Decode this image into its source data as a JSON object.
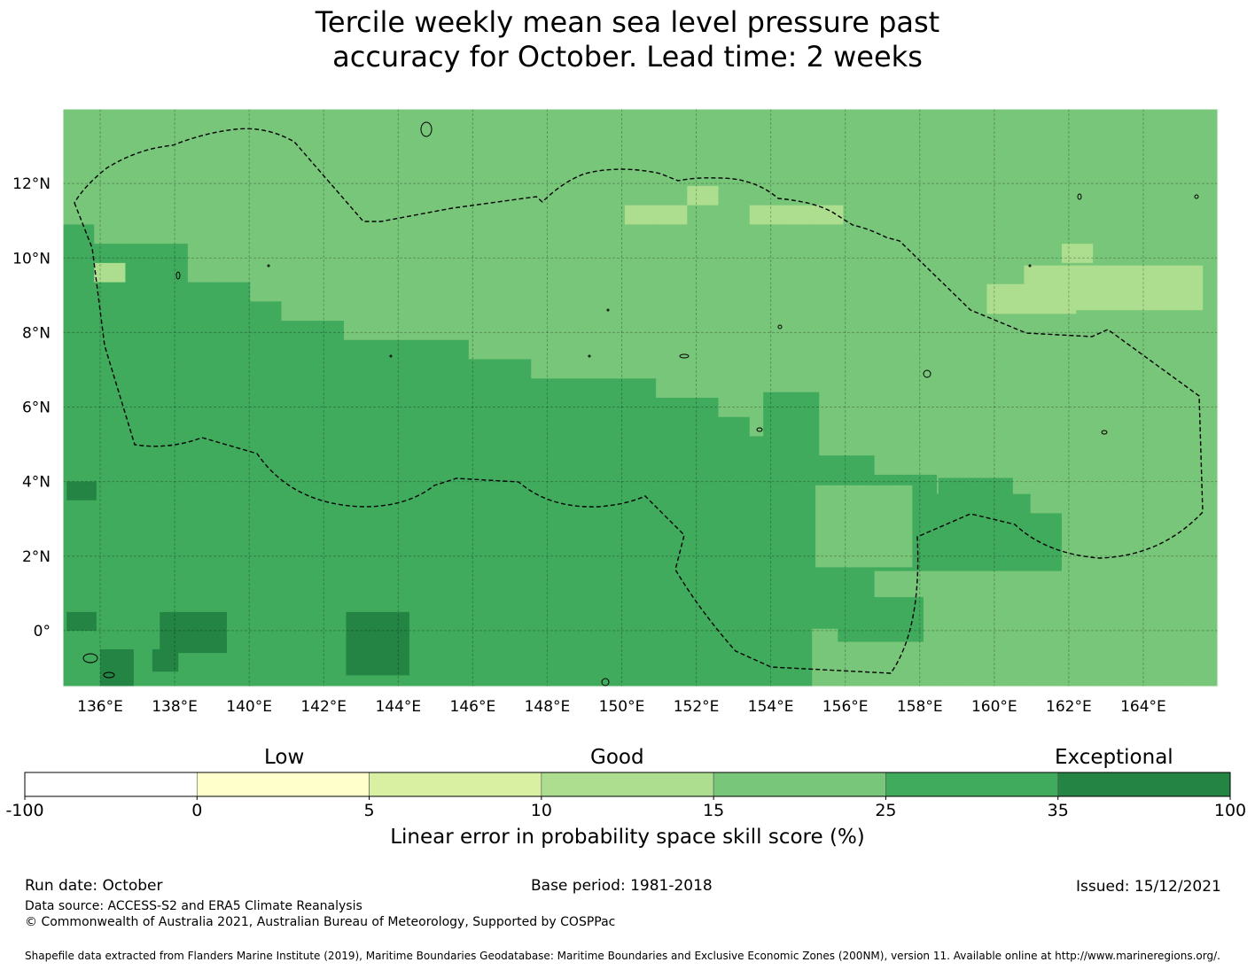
{
  "title": {
    "line1": "Tercile weekly mean sea level pressure past",
    "line2": "accuracy for October. Lead time: 2 weeks"
  },
  "map": {
    "lon_range": [
      135,
      166
    ],
    "lat_range": [
      -1.5,
      14
    ],
    "lon_ticks": [
      "136°E",
      "138°E",
      "140°E",
      "142°E",
      "144°E",
      "146°E",
      "148°E",
      "150°E",
      "152°E",
      "154°E",
      "156°E",
      "158°E",
      "160°E",
      "162°E",
      "164°E"
    ],
    "lat_ticks": [
      "12°N",
      "10°N",
      "8°N",
      "6°N",
      "4°N",
      "2°N",
      "0°"
    ],
    "gridlines": true,
    "boundary": "dashed black EEZ outline (Federated States of Micronesia)"
  },
  "colorbar": {
    "categories": [
      "Low",
      "Good",
      "Exceptional"
    ],
    "ticks": [
      "-100",
      "0",
      "5",
      "10",
      "15",
      "25",
      "35",
      "100"
    ],
    "colors": [
      "#ffffff",
      "#ffffcc",
      "#d9f0a3",
      "#addd8e",
      "#78c679",
      "#41ab5d",
      "#238443"
    ],
    "label": "Linear error in probability space skill score (%)"
  },
  "footer": {
    "run_date": "Run date: October",
    "base_period": "Base period: 1981-2018",
    "issued": "Issued: 15/12/2021",
    "data_source": "Data source: ACCESS-S2 and ERA5 Climate Reanalysis",
    "copyright": "© Commonwealth of Australia 2021, Australian Bureau of Meteorology, Supported by COSPPac",
    "shapefile": "Shapefile data extracted from Flanders Marine Institute (2019), Maritime Boundaries Geodatabase: Maritime Boundaries and Exclusive Economic Zones (200NM), version 11. Available online at http://www.marineregions.org/."
  }
}
